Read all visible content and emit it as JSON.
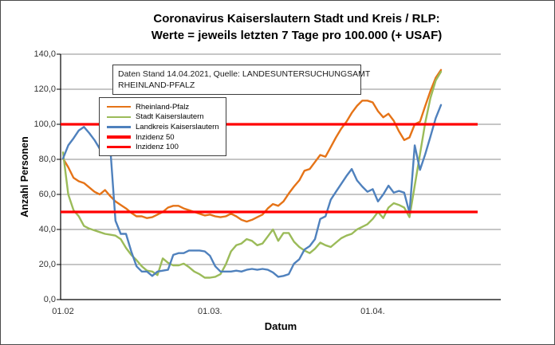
{
  "chart": {
    "title_line1": "Coronavirus Kaiserslautern Stadt und Kreis / RLP:",
    "title_line2": "Werte = jeweils letzten 7 Tage pro 100.000 (+ USAF)",
    "info_box": {
      "line1": "Daten Stand 14.04.2021, Quelle: LANDESUNTERSUCHUNGSAMT",
      "line2": "RHEINLAND-PFALZ"
    },
    "y_axis": {
      "title": "Anzahl Personen",
      "tick_labels": [
        "0,0",
        "20,0",
        "40,0",
        "60,0",
        "80,0",
        "100,0",
        "120,0",
        "140,0"
      ],
      "min": 0,
      "max": 140,
      "step": 20
    },
    "x_axis": {
      "title": "Datum",
      "tick_labels": [
        "01.02",
        "01.03.",
        "01.04."
      ]
    },
    "legend": [
      {
        "label": "Rheinland-Pfalz",
        "color": "#E57317",
        "thickness": 2.4,
        "slug": "rheinland-pfalz"
      },
      {
        "label": "Stadt Kaiserslautern",
        "color": "#9BBB59",
        "thickness": 2.4,
        "slug": "stadt-kaiserslautern"
      },
      {
        "label": "Landkreis Kaiserslautern",
        "color": "#4F81BD",
        "thickness": 2.4,
        "slug": "landkreis-kaiserslautern"
      },
      {
        "label": "Inzidenz 50",
        "color": "#FF0000",
        "thickness": 3.2,
        "slug": "inzidenz-50"
      },
      {
        "label": "Inzidenz 100",
        "color": "#FF0000",
        "thickness": 3.2,
        "slug": "inzidenz-100"
      }
    ]
  },
  "chart_data": {
    "type": "line",
    "title": "Coronavirus Kaiserslautern Stadt und Kreis / RLP: Werte = jeweils letzten 7 Tage pro 100.000 (+ USAF)",
    "xlabel": "Datum",
    "ylabel": "Anzahl Personen",
    "ylim": [
      0,
      140
    ],
    "grid": true,
    "legend_position": "upper-left-inside",
    "x_start_label": "01.02",
    "data_stand": "14.04.2021",
    "n_points": 73,
    "x_tick_labels": [
      "01.02",
      "01.03.",
      "01.04."
    ],
    "x_tick_positions": [
      0,
      28,
      59
    ],
    "series": [
      {
        "name": "Rheinland-Pfalz",
        "slug": "rheinland-pfalz",
        "color": "#E57317",
        "values": [
          80.5,
          75.5,
          69.5,
          67.5,
          66.5,
          64,
          61.5,
          60,
          62.5,
          59,
          56,
          54,
          52,
          49.5,
          47.5,
          47.5,
          46.5,
          47,
          48.5,
          50,
          52.5,
          53.5,
          53.5,
          52,
          51,
          50,
          49,
          48,
          48.5,
          47.5,
          47,
          47.5,
          49,
          47.5,
          45.5,
          44.5,
          45.5,
          47,
          48.5,
          52,
          54.5,
          53.5,
          56,
          60.5,
          64.5,
          68,
          73.5,
          74.5,
          78.5,
          82.5,
          81.5,
          87,
          92.5,
          97.5,
          101.5,
          106.5,
          110.5,
          113.5,
          113.5,
          112.5,
          107.5,
          104,
          106,
          102,
          96,
          91,
          92.5,
          100,
          101.5,
          110.5,
          119,
          126.5,
          131
        ]
      },
      {
        "name": "Stadt Kaiserslautern",
        "slug": "stadt-kaiserslautern",
        "color": "#9BBB59",
        "values": [
          84,
          60,
          51,
          47.5,
          42,
          40.5,
          39.5,
          38.5,
          37.5,
          37,
          36.5,
          34.5,
          29.5,
          25.5,
          22.5,
          19,
          16.5,
          16,
          14,
          23.5,
          21,
          19.5,
          19.5,
          20.5,
          18.5,
          16,
          14.5,
          12.5,
          12.5,
          13,
          14.5,
          20,
          27.5,
          31,
          32,
          34.5,
          33.5,
          31,
          32,
          36,
          40,
          33.5,
          38,
          38,
          33,
          30,
          28,
          26.5,
          29,
          32.5,
          31,
          30,
          32.5,
          35,
          36.5,
          37.5,
          40,
          41.5,
          43,
          46,
          50,
          46.5,
          52.5,
          55,
          54,
          52.5,
          47,
          65,
          83,
          101,
          115,
          125,
          130
        ]
      },
      {
        "name": "Landkreis Kaiserslautern",
        "slug": "landkreis-kaiserslautern",
        "color": "#4F81BD",
        "values": [
          80.5,
          88,
          92,
          96.5,
          98.5,
          95,
          91,
          86,
          85.5,
          86.5,
          45,
          37.5,
          37.5,
          27.5,
          19,
          16,
          16,
          13.5,
          16,
          16.5,
          17,
          25.5,
          26.5,
          26.5,
          28,
          28,
          28,
          27.5,
          25,
          19,
          16,
          16,
          16,
          16.5,
          16,
          17,
          17.5,
          17,
          17.5,
          17,
          15.5,
          13,
          13.5,
          14.5,
          20.5,
          23,
          28.5,
          30.5,
          34.5,
          46,
          47.5,
          57,
          61.5,
          66,
          70.5,
          74.5,
          68,
          64.5,
          61.5,
          63,
          56,
          60,
          65,
          61,
          62,
          61,
          49.5,
          88,
          74,
          83,
          93,
          103.5,
          111
        ]
      }
    ],
    "reference_lines": [
      {
        "name": "Inzidenz 50",
        "slug": "inzidenz-50",
        "value": 50,
        "color": "#FF0000"
      },
      {
        "name": "Inzidenz 100",
        "slug": "inzidenz-100",
        "value": 100,
        "color": "#FF0000"
      }
    ]
  }
}
